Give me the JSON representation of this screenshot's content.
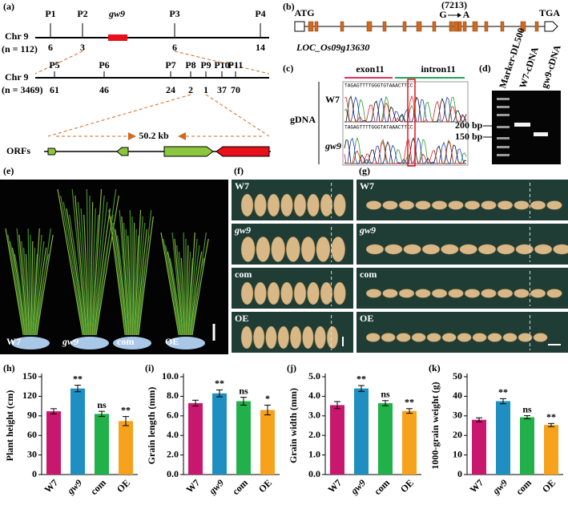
{
  "panel_a": {
    "label": "(a)",
    "map1": {
      "chr": "Chr 9",
      "n": "(n = 112)",
      "markers": [
        "P1",
        "P2",
        "gw9",
        "P3",
        "P4"
      ],
      "counts": [
        6,
        3,
        6,
        14
      ]
    },
    "map2": {
      "chr": "Chr 9",
      "n": "(n = 3469)",
      "markers": [
        "P5",
        "P6",
        "P7",
        "P8",
        "P9",
        "P10",
        "P11"
      ],
      "counts": [
        61,
        46,
        24,
        2,
        1,
        37,
        70
      ]
    },
    "orfs": "ORFs",
    "size": "50.2 kb"
  },
  "panel_b": {
    "label": "(b)",
    "start": "ATG",
    "stop": "TGA",
    "position": "(7213)",
    "from": "G",
    "to": "A",
    "gene": "LOC_Os09g13630"
  },
  "panel_c": {
    "label": "(c)",
    "exon": "exon11",
    "intron": "intron11",
    "row1": "W7",
    "row2": "gw9",
    "side": "gDNA",
    "seq1": "TAGAGTTTTGGGTGTAAACTTCC",
    "seq2": "TAGAGTTTTGGGTATAAACTTCC"
  },
  "panel_d": {
    "label": "(d)",
    "lanes": [
      "Marker-DL500",
      "W7-cDNA",
      "gw9-cDNA"
    ],
    "bands": [
      "200 bp",
      "150 bp"
    ]
  },
  "panel_e": {
    "label": "(e)",
    "lines": [
      "W7",
      "gw9",
      "com",
      "OE"
    ]
  },
  "panel_f": {
    "label": "(f)",
    "rows": [
      "W7",
      "gw9",
      "com",
      "OE"
    ]
  },
  "panel_g": {
    "label": "(g)",
    "rows": [
      "W7",
      "gw9",
      "com",
      "OE"
    ]
  },
  "chart_data": [
    {
      "type": "bar",
      "panel_label": "(h)",
      "y_label": "Plant height (cm)",
      "categories": [
        "W7",
        "gw9",
        "com",
        "OE"
      ],
      "values": [
        97,
        132,
        93,
        82
      ],
      "errors": [
        4,
        5,
        4,
        7
      ],
      "annotations": [
        null,
        "**",
        "ns",
        "**"
      ],
      "colors": [
        "#c8186e",
        "#1e8fc0",
        "#22b04a",
        "#f7a21c"
      ],
      "ylim": [
        0,
        150
      ],
      "yticks": [
        0,
        30,
        60,
        90,
        120,
        150
      ]
    },
    {
      "type": "bar",
      "panel_label": "(i)",
      "y_label": "Grain length (mm)",
      "categories": [
        "W7",
        "gw9",
        "com",
        "OE"
      ],
      "values": [
        7.3,
        8.3,
        7.5,
        6.6
      ],
      "errors": [
        0.3,
        0.35,
        0.4,
        0.5
      ],
      "annotations": [
        null,
        "**",
        "ns",
        "*"
      ],
      "colors": [
        "#c8186e",
        "#1e8fc0",
        "#22b04a",
        "#f7a21c"
      ],
      "ylim": [
        0,
        10
      ],
      "yticks": [
        {
          "value": 0,
          "label": "0.0"
        },
        {
          "value": 2,
          "label": "2.0"
        },
        {
          "value": 4,
          "label": "4.0"
        },
        {
          "value": 6,
          "label": "6.0"
        },
        {
          "value": 8,
          "label": "8.0"
        },
        {
          "value": 10,
          "label": "10.0"
        }
      ]
    },
    {
      "type": "bar",
      "panel_label": "(j)",
      "y_label": "Grain width (mm)",
      "categories": [
        "W7",
        "gw9",
        "com",
        "OE"
      ],
      "values": [
        3.55,
        4.4,
        3.65,
        3.25
      ],
      "errors": [
        0.18,
        0.15,
        0.13,
        0.12
      ],
      "annotations": [
        null,
        "**",
        "ns",
        "**"
      ],
      "colors": [
        "#c8186e",
        "#1e8fc0",
        "#22b04a",
        "#f7a21c"
      ],
      "ylim": [
        0,
        5
      ],
      "yticks": [
        {
          "value": 0,
          "label": "0.0"
        },
        {
          "value": 1,
          "label": "1.0"
        },
        {
          "value": 2,
          "label": "2.0"
        },
        {
          "value": 3,
          "label": "3.0"
        },
        {
          "value": 4,
          "label": "4.0"
        },
        {
          "value": 5,
          "label": "5.0"
        }
      ]
    },
    {
      "type": "bar",
      "panel_label": "(k)",
      "y_label": "1000-grain weight (g)",
      "categories": [
        "W7",
        "gw9",
        "com",
        "OE"
      ],
      "values": [
        28,
        37.5,
        29.3,
        25.3
      ],
      "errors": [
        1,
        1.3,
        0.8,
        0.8
      ],
      "annotations": [
        null,
        "**",
        "ns",
        "**"
      ],
      "colors": [
        "#c8186e",
        "#1e8fc0",
        "#22b04a",
        "#f7a21c"
      ],
      "ylim": [
        0,
        50
      ],
      "yticks": [
        0,
        10,
        20,
        30,
        40,
        50
      ]
    }
  ]
}
